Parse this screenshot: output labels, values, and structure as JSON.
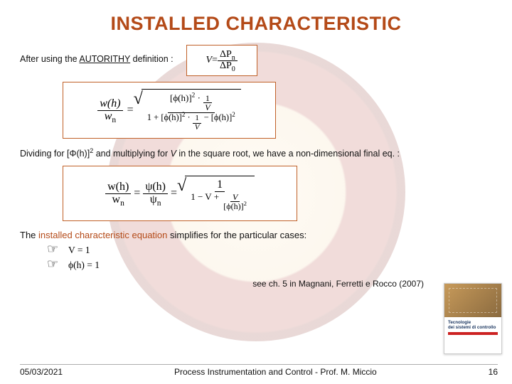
{
  "colors": {
    "title": "#b44a18",
    "body_text": "#111111",
    "eq_border": "#c06028",
    "seal_ring_dark": "#7a1a10",
    "seal_ring": "#a72416",
    "seal_center": "#fdecc8",
    "background": "#ffffff",
    "book_title": "#1a355f",
    "book_bar": "#cc2222"
  },
  "typography": {
    "title_fontsize_pt": 20,
    "title_weight": 900,
    "body_fontsize_pt": 9.5,
    "body_family": "Arial",
    "math_family": "Times New Roman"
  },
  "title": "INSTALLED CHARACTERISTIC",
  "line1_pre": "After using the ",
  "line1_auth": "AUTORITHY",
  "line1_post": " definition :",
  "line2_pre": "Dividing for [Φ(h)]",
  "line2_sup": "2",
  "line2_mid": " and multiplying for ",
  "line2_V": "V",
  "line2_post": " in the square root, we have a non-dimensional final eq. :",
  "eq1": {
    "lhs_num": "ΔP",
    "lhs_num_sub": "n",
    "lhs_den": "ΔP",
    "lhs_den_sub": "0",
    "V": "V",
    "eq": " = "
  },
  "eq2": {
    "lhs_num": "w(h)",
    "lhs_den_w": "w",
    "lhs_den_sub": "n",
    "eq": " = ",
    "rad_num": "[ϕ(h)]",
    "two": "2",
    "dot": " · ",
    "one": "1",
    "V": "V",
    "rad_den_a": "1 + [ϕ(h)]",
    "rad_den_b": " · ",
    "rad_den_c": " − [ϕ(h)]"
  },
  "eq3": {
    "lhs_num": "w(h)",
    "lhs_den_w": "w",
    "lhs_den_sub": "n",
    "eq": " = ",
    "mid_num": "ψ(h)",
    "mid_den_psi": "ψ",
    "mid_den_sub": "n",
    "one": "1",
    "V": "V",
    "rhs_den_a": "1 − V + ",
    "rhs_den_b": "[ϕ(h)]",
    "two": "2"
  },
  "simplify_pre": "The ",
  "simplify_ic": "installed characteristic equation",
  "simplify_post": " simplifies for the particular cases:",
  "bullet_glyph": "☞",
  "bullets": [
    "V = 1",
    "ϕ(h) = 1"
  ],
  "reference": "see ch. 5 in Magnani, Ferretti e Rocco (2007)",
  "book": {
    "title_line1": "Tecnologie",
    "title_line2": "dei sistemi di controllo"
  },
  "footer": {
    "date": "05/03/2021",
    "center": "Process Instrumentation and Control - Prof. M. Miccio",
    "page": "16"
  }
}
